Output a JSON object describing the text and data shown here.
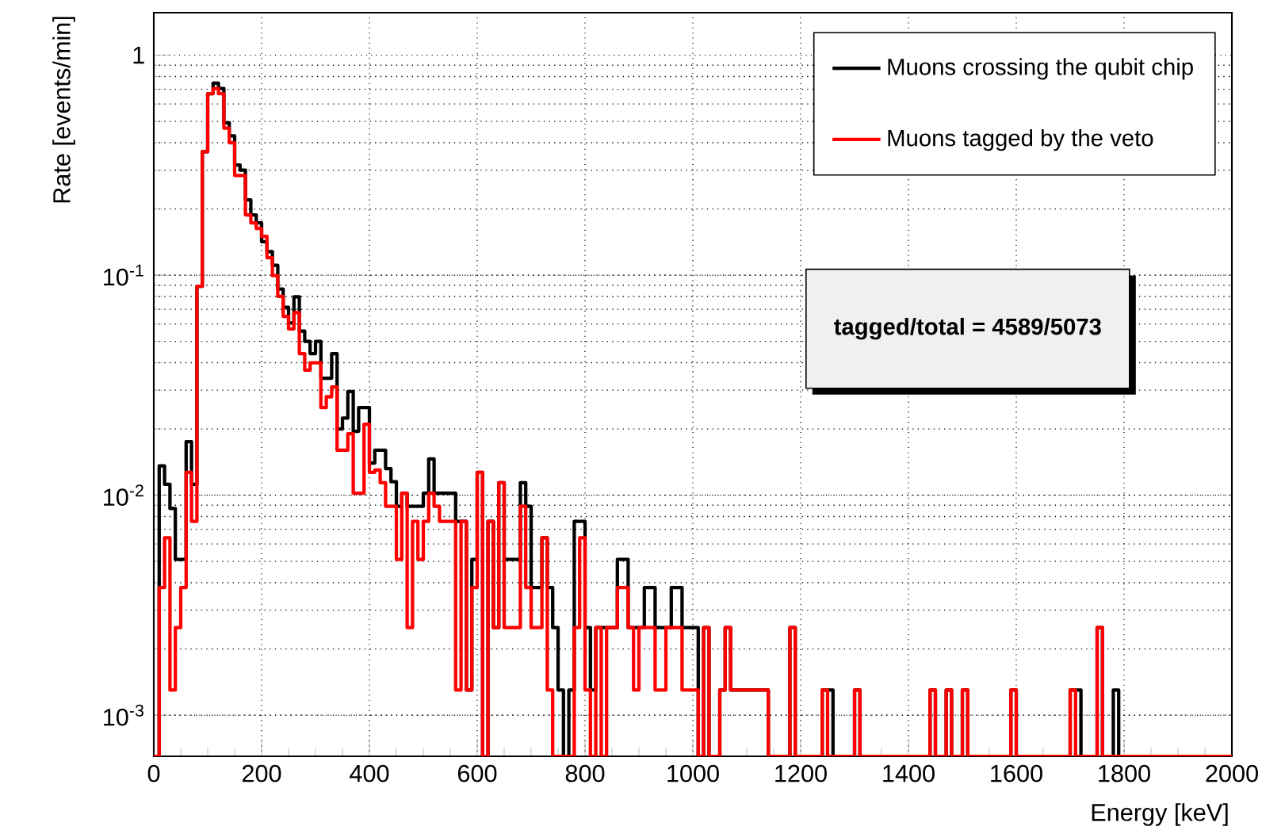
{
  "chart_data": {
    "type": "histogram",
    "xlabel": "Energy [keV]",
    "ylabel": "Rate [events/min]",
    "annotations": [
      "tagged/total = 4589/5073"
    ],
    "xlim": [
      0,
      2000
    ],
    "ylim": [
      0.00065,
      1.56
    ],
    "xticks": [
      0,
      200,
      400,
      600,
      800,
      1000,
      1200,
      1400,
      1600,
      1800,
      2000
    ],
    "yticks": [
      {
        "value": 0.001,
        "label": "10$^{-3}$"
      },
      {
        "value": 0.01,
        "label": "10$^{-2}$"
      },
      {
        "value": 0.1,
        "label": "10$^{-1}$"
      },
      1
    ],
    "log": "y",
    "grid": true,
    "legend": "top right",
    "line_style": "solid",
    "marker": "none",
    "bins": [
      0,
      10,
      20,
      30,
      40,
      50,
      60,
      70,
      80,
      90,
      100,
      110,
      120,
      130,
      140,
      150,
      160,
      170,
      180,
      190,
      200,
      210,
      220,
      230,
      240,
      250,
      260,
      270,
      280,
      290,
      300,
      310,
      320,
      330,
      340,
      350,
      360,
      370,
      380,
      390,
      400,
      410,
      420,
      430,
      440,
      450,
      460,
      470,
      480,
      490,
      500,
      510,
      520,
      530,
      540,
      550,
      560,
      570,
      580,
      590,
      600,
      610,
      620,
      630,
      640,
      650,
      660,
      670,
      680,
      690,
      700,
      710,
      720,
      730,
      740,
      750,
      760,
      770,
      780,
      790,
      800,
      810,
      820,
      830,
      840,
      850,
      860,
      870,
      880,
      890,
      900,
      910,
      920,
      930,
      940,
      950,
      960,
      970,
      980,
      990,
      1000,
      1010,
      1020,
      1030,
      1040,
      1050,
      1060,
      1070,
      1080,
      1090,
      1100,
      1110,
      1120,
      1130,
      1140,
      1150,
      1160,
      1170,
      1180,
      1190,
      1200,
      1210,
      1220,
      1230,
      1240,
      1250,
      1260,
      1270,
      1280,
      1290,
      1300,
      1310,
      1320,
      1330,
      1340,
      1350,
      1360,
      1370,
      1380,
      1390,
      1400,
      1410,
      1420,
      1430,
      1440,
      1450,
      1460,
      1470,
      1480,
      1490,
      1500,
      1510,
      1520,
      1530,
      1540,
      1550,
      1560,
      1570,
      1580,
      1590,
      1600,
      1610,
      1620,
      1630,
      1640,
      1650,
      1660,
      1670,
      1680,
      1690,
      1700,
      1710,
      1720,
      1730,
      1740,
      1750,
      1760,
      1770,
      1780,
      1790,
      1800,
      1810,
      1820,
      1830,
      1840,
      1850,
      1860,
      1870,
      1880,
      1890,
      1900,
      1910,
      1920,
      1930,
      1940,
      1950,
      1960,
      1970,
      1980,
      1990,
      2000
    ],
    "series": [
      {
        "name": "Muons crossing the qubit chip",
        "color": "#000000",
        "values": [
          null,
          0.0136,
          0.0112,
          0.0087,
          0.0051,
          0.0051,
          0.0175,
          0.0112,
          0.089,
          0.364,
          0.668,
          0.746,
          0.706,
          0.493,
          0.43,
          0.317,
          0.3,
          0.22,
          0.188,
          0.173,
          0.142,
          0.128,
          0.111,
          0.0865,
          0.0714,
          0.0606,
          0.0797,
          0.0557,
          0.05,
          0.044,
          0.05,
          0.034,
          0.034,
          0.044,
          0.02,
          0.0224,
          0.0296,
          0.0195,
          0.025,
          0.025,
          0.014,
          0.016,
          0.016,
          0.0132,
          0.0115,
          0.0089,
          0.0102,
          0.0089,
          0.0089,
          0.0089,
          0.0102,
          0.0146,
          0.0102,
          0.0102,
          0.0102,
          0.0102,
          0.0076,
          0.0076,
          0.0013,
          0.0051,
          0.0127,
          null,
          0.0076,
          0.0025,
          0.0114,
          0.0051,
          0.0051,
          0.0051,
          0.0114,
          0.0089,
          0.0038,
          0.0038,
          0.0064,
          0.0038,
          0.0025,
          0.0013,
          null,
          0.0013,
          0.0076,
          0.0076,
          0.0025,
          0.0013,
          0.0025,
          0.0025,
          0.0025,
          0.0025,
          0.0051,
          0.0051,
          0.0025,
          0.0025,
          0.0025,
          0.0038,
          0.0038,
          0.0025,
          0.0025,
          0.0025,
          0.0038,
          0.0038,
          0.0025,
          0.0025,
          0.0025,
          null,
          0.0025,
          null,
          null,
          0.0013,
          0.0025,
          0.0013,
          0.0013,
          0.0013,
          0.0013,
          0.0013,
          0.0013,
          0.0013,
          null,
          null,
          null,
          null,
          0.0025,
          null,
          null,
          null,
          null,
          null,
          0.0013,
          0.0013,
          null,
          null,
          null,
          null,
          0.0013,
          null,
          null,
          null,
          null,
          null,
          null,
          null,
          null,
          null,
          null,
          null,
          null,
          null,
          0.0013,
          null,
          null,
          0.0013,
          null,
          null,
          0.0013,
          null,
          null,
          null,
          null,
          null,
          null,
          null,
          null,
          0.0013,
          null,
          null,
          null,
          null,
          null,
          null,
          null,
          null,
          null,
          null,
          0.0013,
          0.0013,
          null,
          null,
          null,
          0.0025,
          null,
          null,
          0.0013,
          null,
          null,
          null,
          null,
          null,
          null,
          null,
          null,
          null,
          null,
          null,
          null,
          null,
          null,
          null,
          null,
          null,
          null,
          null,
          null,
          null
        ]
      },
      {
        "name": "Muons tagged by the veto",
        "color": "#ff0000",
        "values": [
          null,
          0.0038,
          0.0064,
          0.0013,
          0.0025,
          0.0038,
          0.0127,
          0.0076,
          0.089,
          0.364,
          0.668,
          0.706,
          0.668,
          0.466,
          0.4,
          0.284,
          0.284,
          0.188,
          0.173,
          0.163,
          0.15,
          0.12,
          0.0995,
          0.08,
          0.065,
          0.057,
          0.0675,
          0.044,
          0.037,
          0.04,
          0.04,
          0.025,
          0.028,
          0.031,
          0.016,
          0.016,
          0.019,
          0.0102,
          0.0102,
          0.021,
          0.0127,
          0.013,
          0.0114,
          0.0089,
          0.0089,
          0.0051,
          0.0102,
          0.0025,
          0.0076,
          0.0051,
          0.0076,
          0.0102,
          0.0089,
          0.0076,
          0.0076,
          0.0076,
          0.0013,
          0.0076,
          0.0013,
          0.0038,
          0.0127,
          null,
          0.0076,
          0.0025,
          0.0114,
          0.0025,
          0.0025,
          0.0025,
          0.0089,
          0.0038,
          0.0025,
          0.0025,
          0.0064,
          0.0013,
          null,
          null,
          null,
          null,
          0.0025,
          0.0064,
          0.0013,
          null,
          0.0025,
          null,
          0.0025,
          0.0025,
          0.0038,
          0.0038,
          0.0025,
          0.0013,
          0.0025,
          0.0025,
          0.0025,
          0.0013,
          0.0013,
          0.0025,
          0.0025,
          0.0025,
          0.0013,
          0.0013,
          0.0013,
          null,
          0.0025,
          null,
          null,
          0.0013,
          0.0025,
          0.0013,
          0.0013,
          0.0013,
          0.0013,
          0.0013,
          0.0013,
          0.0013,
          null,
          null,
          null,
          null,
          0.0025,
          null,
          null,
          null,
          null,
          null,
          0.0013,
          null,
          null,
          null,
          null,
          null,
          0.0013,
          null,
          null,
          null,
          null,
          null,
          null,
          null,
          null,
          null,
          null,
          null,
          null,
          null,
          0.0013,
          null,
          null,
          0.0013,
          null,
          null,
          0.0013,
          null,
          null,
          null,
          null,
          null,
          null,
          null,
          null,
          0.0013,
          null,
          null,
          null,
          null,
          null,
          null,
          null,
          null,
          null,
          null,
          0.0013,
          null,
          null,
          null,
          null,
          0.0025,
          null,
          null,
          null,
          null,
          null,
          null,
          null,
          null,
          null,
          null,
          null,
          null,
          null,
          null,
          null,
          null,
          null,
          null,
          null,
          null,
          null,
          null,
          null,
          null
        ]
      }
    ]
  }
}
